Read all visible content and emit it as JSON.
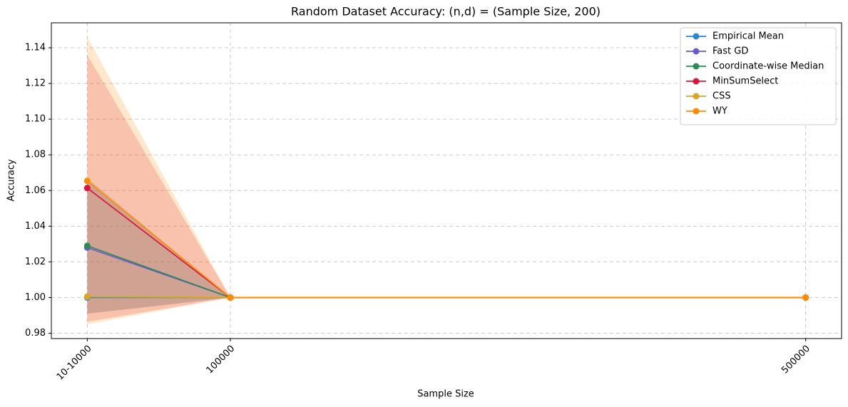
{
  "chart_data": {
    "type": "line",
    "title": "Random Dataset Accuracy: (n,d) = (Sample Size, 200)",
    "x_label": "Sample Size",
    "y_label": "Accuracy",
    "x": [
      500,
      100000,
      500000
    ],
    "xlim": [
      -24475,
      524975
    ],
    "xticks": [
      {
        "value": 500,
        "label": "10-10000"
      },
      100000,
      500000
    ],
    "ylim": [
      0.977,
      1.154
    ],
    "yticks": [
      0.98,
      {
        "value": 1.0,
        "label": "1.00"
      },
      1.02,
      1.04,
      1.06,
      1.08,
      {
        "value": 1.1,
        "label": "1.10"
      },
      1.12,
      1.14
    ],
    "grid": true,
    "legend": "upper right",
    "series": [
      {
        "name": "Empirical Mean",
        "color": "#2a87d0",
        "values": [
          1.0,
          1.0,
          1.0
        ]
      },
      {
        "name": "Fast GD",
        "color": "#6a5acd",
        "values": [
          1.028,
          1.0,
          1.0
        ],
        "lower": [
          0.991,
          1.0,
          1.0
        ],
        "upper": [
          1.065,
          1.0,
          1.0
        ]
      },
      {
        "name": "Coordinate-wise Median",
        "color": "#2e8b57",
        "values": [
          1.029,
          1.0,
          1.0
        ],
        "lower": [
          0.991,
          1.0,
          1.0
        ],
        "upper": [
          1.067,
          1.0,
          1.0
        ]
      },
      {
        "name": "MinSumSelect",
        "color": "#dc143c",
        "values": [
          1.0614,
          1.0,
          1.0
        ],
        "lower": [
          0.9864,
          1.0,
          1.0
        ],
        "upper": [
          1.136,
          1.0,
          1.0
        ]
      },
      {
        "name": "CSS",
        "color": "#daa520",
        "values": [
          1.0005,
          1.0,
          1.0
        ]
      },
      {
        "name": "WY",
        "color": "#ff8c00",
        "values": [
          1.0654,
          1.0,
          1.0
        ],
        "lower": [
          0.985,
          1.0,
          1.0
        ],
        "upper": [
          1.146,
          1.0,
          1.0
        ]
      }
    ]
  }
}
